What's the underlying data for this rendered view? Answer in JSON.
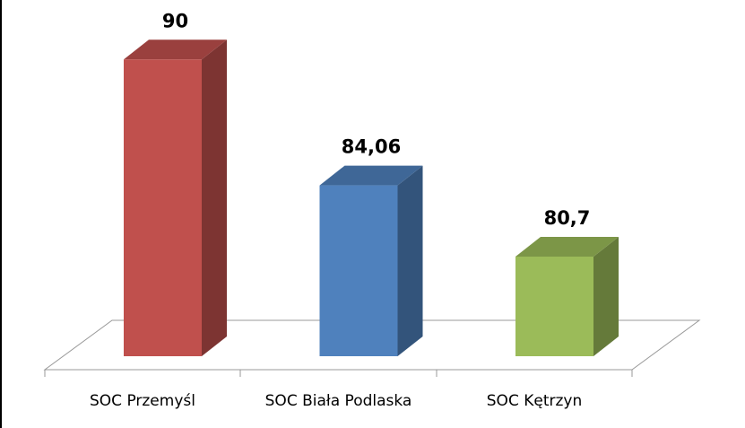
{
  "chart_data": {
    "type": "bar3d",
    "categories": [
      "SOC Przemyśl",
      "SOC Biała Podlaska",
      "SOC Kętrzyn"
    ],
    "values": [
      90,
      84.06,
      80.7
    ],
    "value_labels": [
      "90",
      "84,06",
      "80,7"
    ],
    "colors": [
      "#c0504d",
      "#4f81bd",
      "#9bbb59"
    ],
    "ylim": [
      76,
      92
    ]
  }
}
